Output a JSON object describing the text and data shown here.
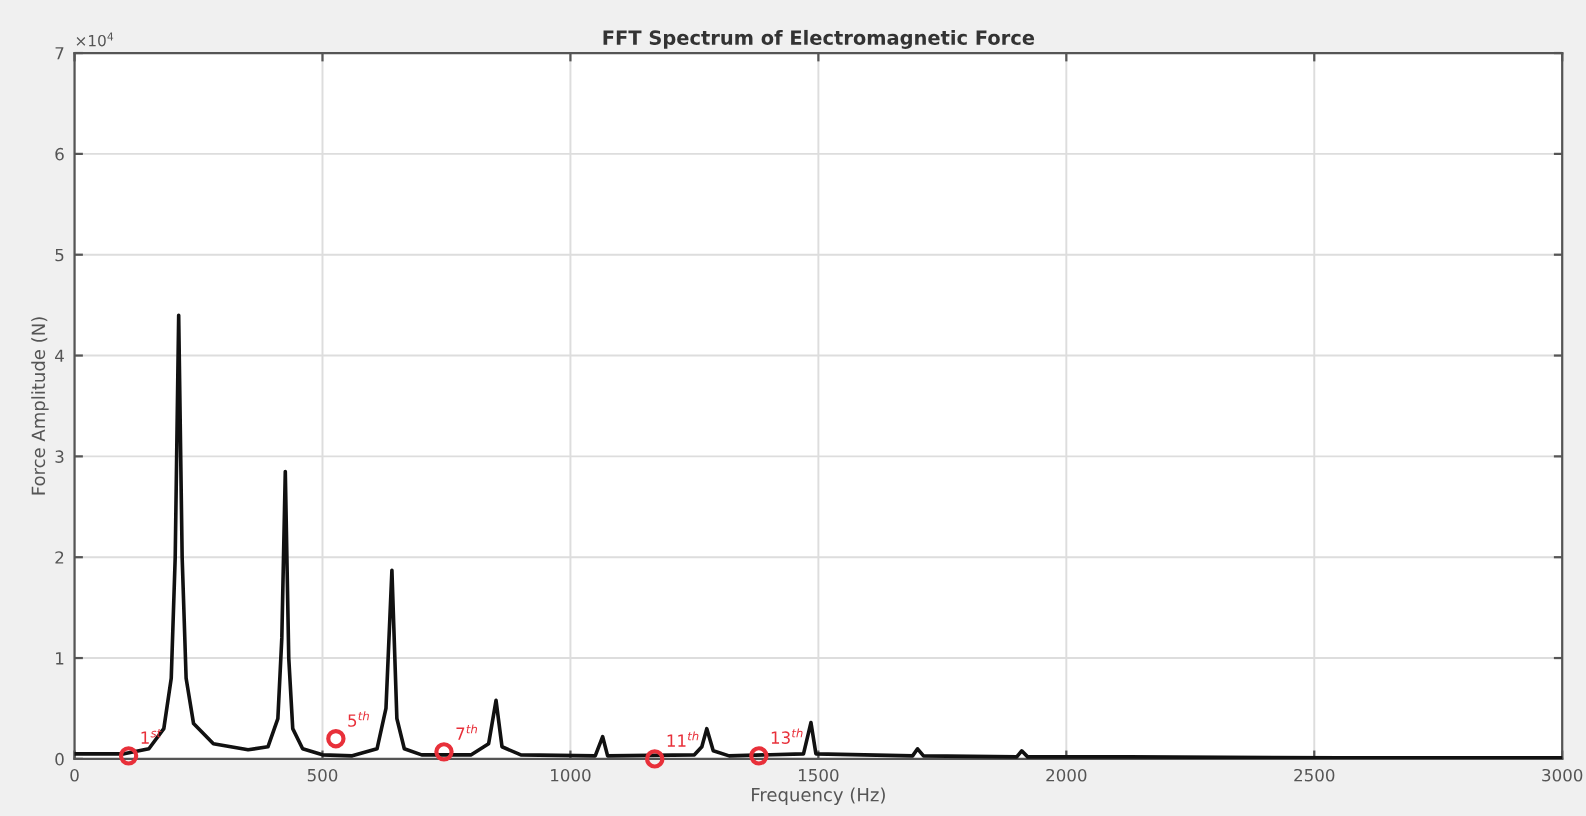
{
  "chart_data": {
    "type": "line",
    "title": "FFT Spectrum of Electromagnetic Force",
    "xlabel": "Frequency (Hz)",
    "ylabel": "Force Amplitude (N)",
    "xlim": [
      0,
      3000
    ],
    "xticks": [
      0,
      500,
      1000,
      1500,
      2000,
      2500,
      3000
    ],
    "ylim": [
      0,
      7
    ],
    "yticks": [
      0,
      1,
      2,
      3,
      4,
      5,
      6,
      7
    ],
    "grid": true,
    "series": [
      {
        "color": "#111111",
        "line_style": "solid",
        "marker": "none",
        "x": [
          0,
          100,
          150,
          180,
          195,
          203,
          210,
          217,
          225,
          240,
          280,
          350,
          390,
          410,
          418,
          425,
          432,
          440,
          460,
          500,
          560,
          610,
          628,
          640,
          650,
          665,
          700,
          800,
          835,
          850,
          862,
          900,
          1050,
          1065,
          1075,
          1250,
          1265,
          1275,
          1288,
          1320,
          1470,
          1485,
          1495,
          1690,
          1700,
          1712,
          1900,
          1910,
          1922,
          2125,
          2550,
          3000
        ],
        "values": [
          0.05,
          0.05,
          0.1,
          0.3,
          0.8,
          2.0,
          4.4,
          2.0,
          0.8,
          0.35,
          0.15,
          0.09,
          0.12,
          0.4,
          1.2,
          2.85,
          1.0,
          0.3,
          0.1,
          0.04,
          0.03,
          0.1,
          0.5,
          1.87,
          0.4,
          0.1,
          0.04,
          0.04,
          0.15,
          0.58,
          0.12,
          0.04,
          0.03,
          0.22,
          0.03,
          0.04,
          0.12,
          0.3,
          0.08,
          0.03,
          0.05,
          0.36,
          0.05,
          0.03,
          0.1,
          0.03,
          0.02,
          0.08,
          0.02,
          0.02,
          0.01,
          0.01
        ]
      },
      {
        "type": "scatter",
        "color": "#e8303a",
        "marker": "circle",
        "x": [
          109,
          527,
          745,
          1170,
          1380
        ],
        "values": [
          0.03,
          0.2,
          0.07,
          0.0,
          0.03
        ]
      }
    ],
    "annotations": [
      "×10$^{4}$",
      {
        "text": "1$^{st}$",
        "x": 109,
        "y": 0.03
      },
      {
        "text": "5$^{th}$",
        "x": 527,
        "y": 0.2
      },
      {
        "text": "7$^{th}$",
        "x": 745,
        "y": 0.07
      },
      {
        "text": "11$^{th}$",
        "x": 1170,
        "y": 0.0
      },
      {
        "text": "13$^{th}$",
        "x": 1380,
        "y": 0.03
      }
    ]
  }
}
